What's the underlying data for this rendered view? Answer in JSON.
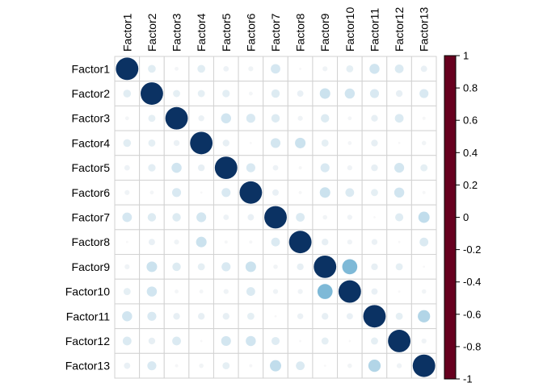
{
  "chart_data": {
    "type": "heatmap",
    "subtype": "correlation-circle-matrix",
    "title": "",
    "legend_position": "right-colorbar",
    "grid": true,
    "labels": [
      "Factor1",
      "Factor2",
      "Factor3",
      "Factor4",
      "Factor5",
      "Factor6",
      "Factor7",
      "Factor8",
      "Factor9",
      "Factor10",
      "Factor11",
      "Factor12",
      "Factor13"
    ],
    "matrix": [
      [
        1.0,
        0.12,
        0.03,
        0.12,
        0.06,
        0.05,
        0.18,
        0.01,
        0.05,
        0.1,
        0.2,
        0.15,
        0.08
      ],
      [
        0.12,
        1.0,
        0.1,
        0.1,
        0.11,
        0.03,
        0.14,
        0.08,
        0.22,
        0.2,
        0.16,
        0.09,
        0.16
      ],
      [
        0.03,
        0.1,
        1.0,
        0.07,
        0.2,
        0.16,
        0.14,
        0.05,
        0.14,
        0.03,
        0.09,
        0.15,
        0.02
      ],
      [
        0.12,
        0.1,
        0.07,
        1.0,
        0.09,
        0.01,
        0.19,
        0.22,
        0.1,
        0.03,
        0.09,
        0.01,
        0.04
      ],
      [
        0.06,
        0.11,
        0.2,
        0.09,
        1.0,
        0.16,
        0.06,
        0.02,
        0.16,
        0.05,
        0.09,
        0.19,
        0.1
      ],
      [
        0.05,
        0.03,
        0.16,
        0.01,
        0.16,
        1.0,
        0.08,
        0.02,
        0.22,
        0.15,
        0.1,
        0.2,
        0.02
      ],
      [
        0.18,
        0.14,
        0.14,
        0.19,
        0.06,
        0.08,
        1.0,
        0.15,
        0.04,
        0.05,
        0.01,
        0.13,
        0.25
      ],
      [
        0.01,
        0.08,
        0.05,
        0.22,
        0.02,
        0.02,
        0.15,
        1.0,
        0.09,
        0.05,
        0.07,
        0.01,
        0.15
      ],
      [
        0.05,
        0.22,
        0.14,
        0.1,
        0.16,
        0.22,
        0.04,
        0.09,
        1.0,
        0.45,
        0.09,
        0.1,
        0.01
      ],
      [
        0.1,
        0.2,
        0.03,
        0.03,
        0.05,
        0.15,
        0.05,
        0.05,
        0.45,
        1.0,
        0.08,
        0.01,
        0.04
      ],
      [
        0.2,
        0.16,
        0.09,
        0.09,
        0.09,
        0.1,
        0.01,
        0.07,
        0.09,
        0.08,
        1.0,
        0.1,
        0.3
      ],
      [
        0.15,
        0.09,
        0.15,
        0.01,
        0.19,
        0.2,
        0.13,
        0.01,
        0.1,
        0.01,
        0.1,
        1.0,
        0.05
      ],
      [
        0.08,
        0.16,
        0.02,
        0.04,
        0.1,
        0.02,
        0.25,
        0.15,
        0.01,
        0.04,
        0.3,
        0.05,
        1.0
      ]
    ],
    "value_range": [
      -1,
      1
    ],
    "colorbar": {
      "ticks": [
        "1",
        "0.8",
        "0.6",
        "0.4",
        "0.2",
        "0",
        "-0.2",
        "-0.4",
        "-0.6",
        "-0.8",
        "-1"
      ],
      "tick_values": [
        1,
        0.8,
        0.6,
        0.4,
        0.2,
        0,
        -0.2,
        -0.4,
        -0.6,
        -0.8,
        -1
      ],
      "palette_stops": [
        {
          "value": -1.0,
          "color": "#67001f"
        },
        {
          "value": -0.8,
          "color": "#b2182b"
        },
        {
          "value": -0.6,
          "color": "#d6604f"
        },
        {
          "value": -0.4,
          "color": "#f4a582"
        },
        {
          "value": -0.2,
          "color": "#fddbc7"
        },
        {
          "value": 0.0,
          "color": "#f9f8f8"
        },
        {
          "value": 0.2,
          "color": "#d1e5f0"
        },
        {
          "value": 0.4,
          "color": "#92c5de"
        },
        {
          "value": 0.6,
          "color": "#4393c3"
        },
        {
          "value": 0.8,
          "color": "#2166ac"
        },
        {
          "value": 1.0,
          "color": "#0b3263"
        }
      ],
      "border_color": "#000000"
    },
    "grid_color": "#d2d2d2",
    "label_color": "#000000"
  }
}
